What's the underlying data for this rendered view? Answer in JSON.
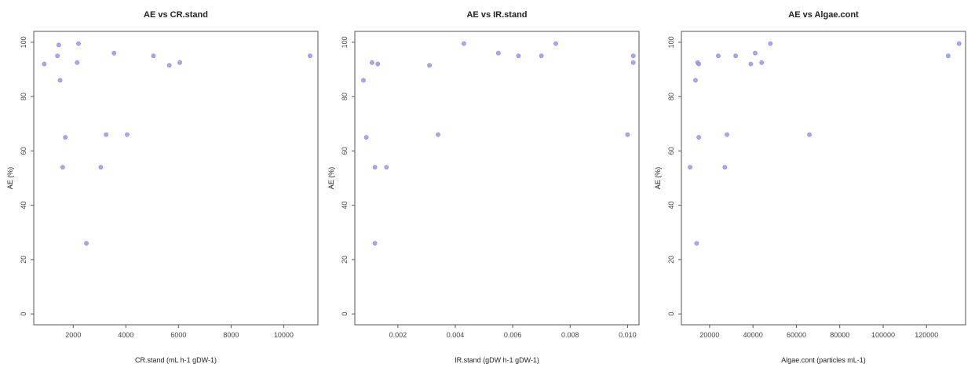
{
  "chart_data": [
    {
      "type": "scatter",
      "title": "AE vs CR.stand",
      "xlabel": "CR.stand (mL h-1 gDW-1)",
      "ylabel": "AE (%)",
      "xlim": [
        500,
        11300
      ],
      "ylim": [
        -4,
        104
      ],
      "xticks": [
        2000,
        4000,
        6000,
        8000,
        10000
      ],
      "yticks": [
        0,
        20,
        40,
        60,
        80,
        100
      ],
      "point_color": "#9a96ee",
      "points": [
        {
          "x": 900,
          "y": 92
        },
        {
          "x": 1400,
          "y": 95
        },
        {
          "x": 1450,
          "y": 99
        },
        {
          "x": 1500,
          "y": 86
        },
        {
          "x": 1600,
          "y": 54
        },
        {
          "x": 1700,
          "y": 65
        },
        {
          "x": 2150,
          "y": 92.5
        },
        {
          "x": 2200,
          "y": 99.5
        },
        {
          "x": 2500,
          "y": 26
        },
        {
          "x": 3050,
          "y": 54
        },
        {
          "x": 3250,
          "y": 66
        },
        {
          "x": 3550,
          "y": 96
        },
        {
          "x": 4050,
          "y": 66
        },
        {
          "x": 5050,
          "y": 95
        },
        {
          "x": 5650,
          "y": 91.5
        },
        {
          "x": 6050,
          "y": 92.5
        },
        {
          "x": 11000,
          "y": 95
        }
      ]
    },
    {
      "type": "scatter",
      "title": "AE vs IR.stand",
      "xlabel": "IR.stand (gDW h-1 gDW-1)",
      "ylabel": "AE (%)",
      "xlim": [
        0.0005,
        0.0104
      ],
      "ylim": [
        -4,
        104
      ],
      "xticks": [
        0.002,
        0.004,
        0.006,
        0.008,
        0.01
      ],
      "xtick_labels": [
        "0.002",
        "0.004",
        "0.006",
        "0.008",
        "0.010"
      ],
      "yticks": [
        0,
        20,
        40,
        60,
        80,
        100
      ],
      "point_color": "#9a96ee",
      "points": [
        {
          "x": 0.0008,
          "y": 86
        },
        {
          "x": 0.0009,
          "y": 65
        },
        {
          "x": 0.0011,
          "y": 92.5
        },
        {
          "x": 0.0012,
          "y": 54
        },
        {
          "x": 0.0012,
          "y": 26
        },
        {
          "x": 0.0013,
          "y": 92
        },
        {
          "x": 0.0016,
          "y": 54
        },
        {
          "x": 0.0031,
          "y": 91.5
        },
        {
          "x": 0.0034,
          "y": 66
        },
        {
          "x": 0.0043,
          "y": 99.5
        },
        {
          "x": 0.0055,
          "y": 96
        },
        {
          "x": 0.0062,
          "y": 95
        },
        {
          "x": 0.007,
          "y": 95
        },
        {
          "x": 0.0075,
          "y": 99.5
        },
        {
          "x": 0.01,
          "y": 66
        },
        {
          "x": 0.0102,
          "y": 95
        },
        {
          "x": 0.0102,
          "y": 92.5
        }
      ]
    },
    {
      "type": "scatter",
      "title": "AE vs Algae.cont",
      "xlabel": "Algae.cont (particles mL-1)",
      "ylabel": "AE (%)",
      "xlim": [
        7000,
        138000
      ],
      "ylim": [
        -4,
        104
      ],
      "xticks": [
        20000,
        40000,
        60000,
        80000,
        100000,
        120000
      ],
      "yticks": [
        0,
        20,
        40,
        60,
        80,
        100
      ],
      "point_color": "#9a96ee",
      "points": [
        {
          "x": 11000,
          "y": 54
        },
        {
          "x": 13500,
          "y": 86
        },
        {
          "x": 14000,
          "y": 26
        },
        {
          "x": 14500,
          "y": 92.5
        },
        {
          "x": 15000,
          "y": 92
        },
        {
          "x": 15000,
          "y": 65
        },
        {
          "x": 24000,
          "y": 95
        },
        {
          "x": 27000,
          "y": 54
        },
        {
          "x": 28000,
          "y": 66
        },
        {
          "x": 32000,
          "y": 95
        },
        {
          "x": 39000,
          "y": 92
        },
        {
          "x": 41000,
          "y": 96
        },
        {
          "x": 44000,
          "y": 92.5
        },
        {
          "x": 48000,
          "y": 99.5
        },
        {
          "x": 66000,
          "y": 66
        },
        {
          "x": 130000,
          "y": 95
        },
        {
          "x": 135000,
          "y": 99.5
        }
      ]
    }
  ]
}
